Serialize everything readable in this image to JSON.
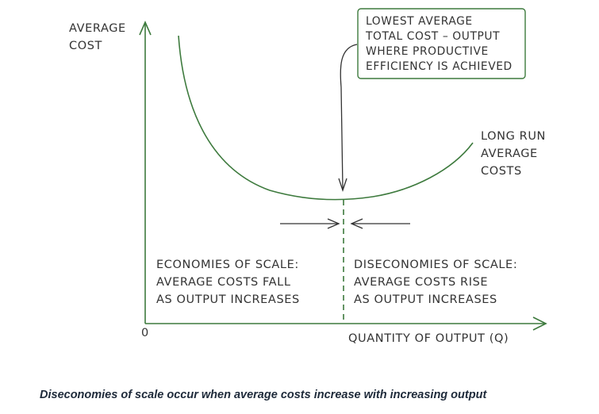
{
  "y_axis_label": [
    "AVERAGE",
    "COST"
  ],
  "origin_label": "0",
  "x_axis_label": "QUANTITY OF OUTPUT (Q)",
  "curve_label": [
    "LONG RUN",
    "AVERAGE",
    "COSTS"
  ],
  "callout_text": [
    "LOWEST AVERAGE",
    "TOTAL COST – OUTPUT",
    "WHERE PRODUCTIVE",
    "EFFICIENCY IS ACHIEVED"
  ],
  "economies_text": [
    "ECONOMIES OF SCALE:",
    "AVERAGE COSTS FALL",
    "AS OUTPUT INCREASES"
  ],
  "diseconomies_text": [
    "DISECONOMIES OF SCALE:",
    "AVERAGE COSTS RISE",
    "AS OUTPUT INCREASES"
  ],
  "caption": "Diseconomies of scale occur when average costs increase with increasing output",
  "colors": {
    "curve": "#3d7a3d",
    "axis": "#3d7a3d",
    "text": "#333333",
    "caption": "#1e2a3a"
  }
}
